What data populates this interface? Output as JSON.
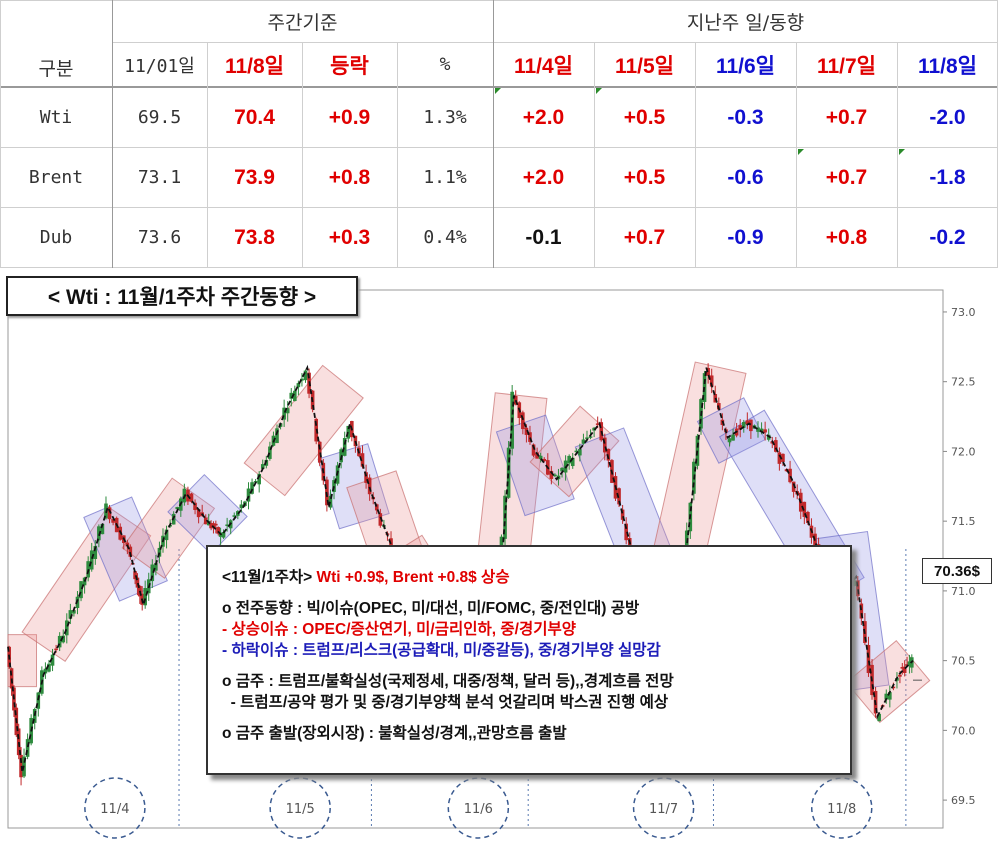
{
  "table": {
    "group_label": "구분",
    "section_week": "주간기준",
    "section_daily": "지난주 일/동향",
    "columns": [
      "11/01일",
      "11/8일",
      "등락",
      "%",
      "11/4일",
      "11/5일",
      "11/6일",
      "11/7일",
      "11/8일"
    ],
    "rows": [
      {
        "name": "Wti",
        "values": [
          "69.5",
          "70.4",
          "+0.9",
          "1.3%",
          "+2.0",
          "+0.5",
          "-0.3",
          "+0.7",
          "-2.0"
        ]
      },
      {
        "name": "Brent",
        "values": [
          "73.1",
          "73.9",
          "+0.8",
          "1.1%",
          "+2.0",
          "+0.5",
          "-0.6",
          "+0.7",
          "-1.8"
        ]
      },
      {
        "name": "Dub",
        "values": [
          "73.6",
          "73.8",
          "+0.3",
          "0.4%",
          "-0.1",
          "+0.7",
          "-0.9",
          "+0.8",
          "-0.2"
        ]
      }
    ],
    "colors": {
      "red": "#e00000",
      "blue": "#1010d0",
      "black": "#111111"
    }
  },
  "chart_data": {
    "type": "candlestick",
    "title": "< Wti : 11월/1주차 주간동향 >",
    "ylim": [
      69.3,
      73.1
    ],
    "y_ticks": [
      "73.0",
      "72.5",
      "72.0",
      "71.5",
      "71.0",
      "70.5",
      "70.0",
      "69.5"
    ],
    "day_labels": [
      "11/4",
      "11/5",
      "11/6",
      "11/7",
      "11/8"
    ],
    "last_price_label": "70.36$",
    "last_price": 70.36,
    "series_path": [
      [
        0,
        70.6
      ],
      [
        0.02,
        69.7
      ],
      [
        0.05,
        70.4
      ],
      [
        0.08,
        70.7
      ],
      [
        0.11,
        71.1
      ],
      [
        0.14,
        71.6
      ],
      [
        0.17,
        71.3
      ],
      [
        0.19,
        70.9
      ],
      [
        0.22,
        71.4
      ],
      [
        0.25,
        71.7
      ],
      [
        0.28,
        71.5
      ],
      [
        0.3,
        71.4
      ],
      [
        0.33,
        71.6
      ],
      [
        0.36,
        71.9
      ],
      [
        0.39,
        72.3
      ],
      [
        0.42,
        72.6
      ],
      [
        0.45,
        71.6
      ],
      [
        0.48,
        72.2
      ],
      [
        0.51,
        71.7
      ],
      [
        0.54,
        71.3
      ],
      [
        0.57,
        70.8
      ],
      [
        0.6,
        70.5
      ],
      [
        0.63,
        71.0
      ],
      [
        0.66,
        71.1
      ],
      [
        0.68,
        70.3
      ],
      [
        0.71,
        72.4
      ],
      [
        0.74,
        72.0
      ],
      [
        0.77,
        71.8
      ],
      [
        0.8,
        72.0
      ],
      [
        0.83,
        72.2
      ],
      [
        0.86,
        71.6
      ],
      [
        0.89,
        71.0
      ],
      [
        0.92,
        70.8
      ],
      [
        0.95,
        71.2
      ],
      [
        0.98,
        72.6
      ],
      [
        1.01,
        72.1
      ],
      [
        1.04,
        72.2
      ],
      [
        1.07,
        72.1
      ],
      [
        1.1,
        71.8
      ],
      [
        1.13,
        71.4
      ],
      [
        1.16,
        70.9
      ],
      [
        1.19,
        71.1
      ],
      [
        1.22,
        70.1
      ],
      [
        1.25,
        70.4
      ],
      [
        1.27,
        70.5
      ]
    ],
    "channels": [
      {
        "dir": "up",
        "from": [
          0.0,
          70.5
        ],
        "to": [
          0.04,
          70.5
        ]
      },
      {
        "dir": "up",
        "from": [
          0.05,
          70.6
        ],
        "to": [
          0.17,
          71.5
        ]
      },
      {
        "dir": "down",
        "from": [
          0.14,
          71.6
        ],
        "to": [
          0.19,
          71.0
        ]
      },
      {
        "dir": "up",
        "from": [
          0.19,
          71.2
        ],
        "to": [
          0.26,
          71.7
        ]
      },
      {
        "dir": "down",
        "from": [
          0.25,
          71.7
        ],
        "to": [
          0.31,
          71.4
        ]
      },
      {
        "dir": "up",
        "from": [
          0.36,
          71.8
        ],
        "to": [
          0.47,
          72.5
        ]
      },
      {
        "dir": "down",
        "from": [
          0.47,
          72.0
        ],
        "to": [
          0.5,
          71.5
        ]
      },
      {
        "dir": "up",
        "from": [
          0.51,
          71.8
        ],
        "to": [
          0.55,
          71.2
        ]
      },
      {
        "dir": "up",
        "from": [
          0.55,
          71.3
        ],
        "to": [
          0.66,
          70.4
        ]
      },
      {
        "dir": "down",
        "from": [
          0.66,
          70.7
        ],
        "to": [
          0.69,
          70.5
        ]
      },
      {
        "dir": "up",
        "from": [
          0.69,
          71.0
        ],
        "to": [
          0.72,
          72.4
        ]
      },
      {
        "dir": "down",
        "from": [
          0.72,
          72.2
        ],
        "to": [
          0.76,
          71.6
        ]
      },
      {
        "dir": "up",
        "from": [
          0.76,
          71.8
        ],
        "to": [
          0.83,
          72.2
        ]
      },
      {
        "dir": "down",
        "from": [
          0.83,
          72.1
        ],
        "to": [
          0.93,
          70.8
        ]
      },
      {
        "dir": "up",
        "from": [
          0.93,
          71.0
        ],
        "to": [
          1.0,
          72.6
        ]
      },
      {
        "dir": "down",
        "from": [
          1.0,
          72.3
        ],
        "to": [
          1.03,
          72.0
        ]
      },
      {
        "dir": "down",
        "from": [
          1.03,
          72.2
        ],
        "to": [
          1.17,
          71.0
        ]
      },
      {
        "dir": "down",
        "from": [
          1.17,
          71.4
        ],
        "to": [
          1.2,
          70.3
        ]
      },
      {
        "dir": "up",
        "from": [
          1.2,
          70.2
        ],
        "to": [
          1.27,
          70.5
        ]
      }
    ]
  },
  "info": {
    "headline_prefix": "<11월/1주차> ",
    "headline_red": "Wti +0.9$, Brent +0.8$ 상승",
    "prev_week": "o 전주동향 : 빅/이슈(OPEC, 미/대선, 미/FOMC, 중/전인대) 공방",
    "up_issue": " - 상승이슈 : OPEC/증산연기, 미/금리인하, 중/경기부양",
    "down_issue": " - 하락이슈 : 트럼프/리스크(공급확대, 미/중갈등), 중/경기부양 실망감",
    "this_week": "o 금주 : 트럼프/불확실성(국제정세, 대중/정책, 달러 등),,경계흐름 전망",
    "this_week_sub": "  - 트럼프/공약 평가 및 중/경기부양책 분석 엇갈리며 박스권 진행 예상",
    "start": "o 금주 출발(장외시장) : 불확실성/경계,,관망흐름 출발"
  }
}
